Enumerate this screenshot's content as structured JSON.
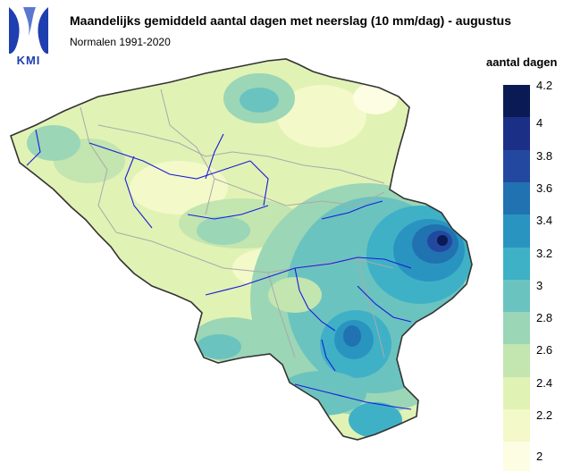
{
  "header": {
    "logo_text": "KMI",
    "title": "Maandelijks gemiddeld aantal dagen met neerslag (10 mm/dag) - augustus",
    "subtitle": "Normalen 1991-2020"
  },
  "legend": {
    "title": "aantal dagen",
    "items": [
      {
        "label": "4.2",
        "color": "#0a1a55"
      },
      {
        "label": "4",
        "color": "#1c2f86"
      },
      {
        "label": "3.8",
        "color": "#2348a0"
      },
      {
        "label": "3.6",
        "color": "#2172b0"
      },
      {
        "label": "3.4",
        "color": "#2a94c1"
      },
      {
        "label": "3.2",
        "color": "#3fb1c6"
      },
      {
        "label": "3",
        "color": "#6bc3bf"
      },
      {
        "label": "2.8",
        "color": "#9bd6b6"
      },
      {
        "label": "2.6",
        "color": "#c3e5b0"
      },
      {
        "label": "2.4",
        "color": "#e1f2b5"
      },
      {
        "label": "2.2",
        "color": "#f3f9c8"
      },
      {
        "label": "2",
        "color": "#fcfde2"
      }
    ]
  },
  "colors": {
    "border": "#333333",
    "rivers": "#1a1adb",
    "provinces": "#aaaaaa"
  }
}
